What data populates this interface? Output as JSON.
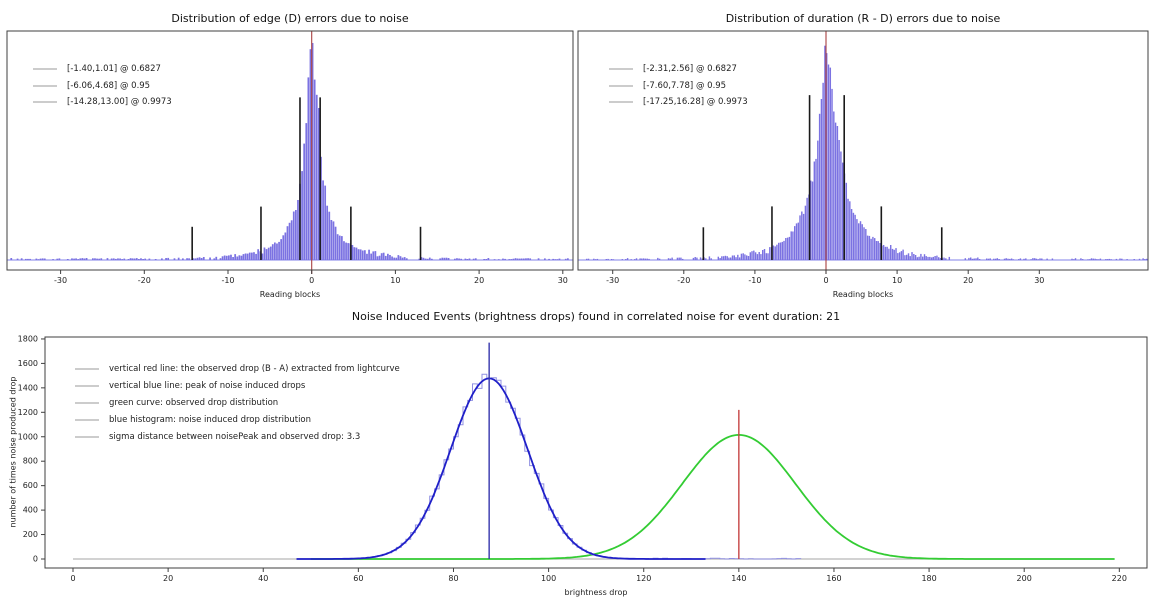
{
  "colors": {
    "hist_fill": "#7b72e2",
    "baseline_blue": "#9a9aee",
    "red_line": "#a84040",
    "black_line": "#1a1a1a",
    "frame": "#3f3f3f",
    "hist_outline": "#9191e2",
    "blue_curve": "#1f1fc8",
    "blue_vline": "#3535ad",
    "green_curve": "#33cc33",
    "red_vline": "#c64545",
    "gray_line": "#b8b8b8",
    "legend_handle": "#cccccc",
    "text": "#222222"
  },
  "chart_data": [
    {
      "type": "bar",
      "title": "Distribution of edge (D) errors due to noise",
      "xlabel": "Reading blocks",
      "xlim": [
        -36.4,
        31.2
      ],
      "xticks": [
        -30,
        -20,
        -10,
        0,
        10,
        20,
        30
      ],
      "y_units": "relative frequency (no y-axis labels shown)",
      "grid": false,
      "legend_position": "upper left",
      "legend": [
        "[-1.40,1.01] @ 0.6827",
        "[-6.06,4.68] @ 0.95",
        "[-14.28,13.00] @ 0.9973"
      ],
      "sigma_intervals": [
        {
          "range": [
            -1.4,
            1.01
          ],
          "coverage": 0.6827,
          "line_height": 0.71
        },
        {
          "range": [
            -6.06,
            4.68
          ],
          "coverage": 0.95,
          "line_height": 0.233
        },
        {
          "range": [
            -14.28,
            13.0
          ],
          "coverage": 0.9973,
          "line_height": 0.145
        }
      ],
      "red_line_x": 0,
      "envelope": [
        [
          -36,
          0.006
        ],
        [
          -20,
          0.006
        ],
        [
          -15,
          0.008
        ],
        [
          -12,
          0.01
        ],
        [
          -10,
          0.015
        ],
        [
          -8,
          0.022
        ],
        [
          -7,
          0.03
        ],
        [
          -6,
          0.04
        ],
        [
          -5,
          0.055
        ],
        [
          -4,
          0.08
        ],
        [
          -3.5,
          0.1
        ],
        [
          -3,
          0.13
        ],
        [
          -2.5,
          0.16
        ],
        [
          -2,
          0.21
        ],
        [
          -1.5,
          0.28
        ],
        [
          -1.2,
          0.35
        ],
        [
          -1,
          0.42
        ],
        [
          -0.8,
          0.52
        ],
        [
          -0.6,
          0.63
        ],
        [
          -0.4,
          0.73
        ],
        [
          -0.2,
          0.83
        ],
        [
          0,
          0.88
        ],
        [
          0.2,
          0.9
        ],
        [
          0.4,
          0.86
        ],
        [
          0.6,
          0.78
        ],
        [
          0.8,
          0.68
        ],
        [
          1,
          0.56
        ],
        [
          1.2,
          0.44
        ],
        [
          1.5,
          0.33
        ],
        [
          2,
          0.22
        ],
        [
          2.5,
          0.17
        ],
        [
          3,
          0.13
        ],
        [
          3.5,
          0.1
        ],
        [
          4,
          0.085
        ],
        [
          5,
          0.06
        ],
        [
          6,
          0.045
        ],
        [
          7,
          0.035
        ],
        [
          8,
          0.027
        ],
        [
          10,
          0.016
        ],
        [
          12,
          0.01
        ],
        [
          15,
          0.008
        ],
        [
          20,
          0.006
        ],
        [
          31,
          0.006
        ]
      ]
    },
    {
      "type": "bar",
      "title": "Distribution of duration (R - D) errors due to noise",
      "xlabel": "Reading blocks",
      "xlim": [
        -34.9,
        45.3
      ],
      "xticks": [
        -30,
        -20,
        -10,
        0,
        10,
        20,
        30
      ],
      "y_units": "relative frequency (no y-axis labels shown)",
      "grid": false,
      "legend_position": "upper left",
      "legend": [
        "[-2.31,2.56] @ 0.6827",
        "[-7.60,7.78] @ 0.95",
        "[-17.25,16.28] @ 0.9973"
      ],
      "sigma_intervals": [
        {
          "range": [
            -2.31,
            2.56
          ],
          "coverage": 0.6827,
          "line_height": 0.72
        },
        {
          "range": [
            -7.6,
            7.78
          ],
          "coverage": 0.95,
          "line_height": 0.234
        },
        {
          "range": [
            -17.25,
            16.28
          ],
          "coverage": 0.9973,
          "line_height": 0.143
        }
      ],
      "red_line_x": 0,
      "envelope": [
        [
          -35,
          0.005
        ],
        [
          -25,
          0.006
        ],
        [
          -20,
          0.008
        ],
        [
          -15,
          0.012
        ],
        [
          -12,
          0.02
        ],
        [
          -10,
          0.03
        ],
        [
          -9,
          0.038
        ],
        [
          -8,
          0.05
        ],
        [
          -7,
          0.065
        ],
        [
          -6,
          0.085
        ],
        [
          -5,
          0.11
        ],
        [
          -4.5,
          0.13
        ],
        [
          -4,
          0.16
        ],
        [
          -3.5,
          0.19
        ],
        [
          -3,
          0.23
        ],
        [
          -2.5,
          0.28
        ],
        [
          -2,
          0.35
        ],
        [
          -1.5,
          0.45
        ],
        [
          -1,
          0.58
        ],
        [
          -0.7,
          0.7
        ],
        [
          -0.4,
          0.82
        ],
        [
          -0.1,
          0.92
        ],
        [
          0.2,
          0.93
        ],
        [
          0.5,
          0.88
        ],
        [
          0.8,
          0.8
        ],
        [
          1.2,
          0.68
        ],
        [
          1.6,
          0.56
        ],
        [
          2,
          0.46
        ],
        [
          2.5,
          0.37
        ],
        [
          3,
          0.3
        ],
        [
          3.5,
          0.25
        ],
        [
          4,
          0.21
        ],
        [
          5,
          0.15
        ],
        [
          6,
          0.11
        ],
        [
          7,
          0.085
        ],
        [
          8,
          0.065
        ],
        [
          9,
          0.05
        ],
        [
          10,
          0.04
        ],
        [
          12,
          0.025
        ],
        [
          15,
          0.014
        ],
        [
          20,
          0.008
        ],
        [
          25,
          0.006
        ],
        [
          45,
          0.005
        ]
      ]
    },
    {
      "type": "histogram+curves",
      "title": "Noise Induced Events (brightness drops) found in correlated noise for event duration: 21",
      "xlabel": "brightness drop",
      "ylabel": "number of times noise produced drop",
      "xlim": [
        -6,
        226
      ],
      "ylim": [
        -75,
        1815
      ],
      "xticks": [
        0,
        20,
        40,
        60,
        80,
        100,
        120,
        140,
        160,
        180,
        200,
        220
      ],
      "yticks": [
        0,
        200,
        400,
        600,
        800,
        1000,
        1200,
        1400,
        1600,
        1800
      ],
      "grid": false,
      "legend_position": "upper left",
      "legend": [
        "vertical red line: the observed drop (B - A) extracted from lightcurve",
        "vertical blue line: peak of noise induced drops",
        "green curve: observed drop distribution",
        "blue histogram: noise induced drop distribution",
        "sigma distance between noisePeak and observed drop: 3.3"
      ],
      "noise_histogram": {
        "mean": 87.5,
        "sigma": 8.1,
        "peak": 1480,
        "range": [
          48,
          153
        ],
        "bin_width": 1
      },
      "noise_fit_curve": {
        "mean": 87.5,
        "sigma": 8.1,
        "peak": 1478,
        "range": [
          47,
          133
        ],
        "color_name": "blue"
      },
      "observed_curve": {
        "mean": 140,
        "sigma": 11.9,
        "peak": 1015,
        "range": [
          50,
          219
        ],
        "color_name": "green"
      },
      "blue_vline": {
        "x": 87.5,
        "top": 1770
      },
      "red_vline": {
        "x": 140,
        "top": 1220
      },
      "gray_zero_line": {
        "from": 0,
        "to": 219
      },
      "sigma_distance": 3.3
    }
  ]
}
